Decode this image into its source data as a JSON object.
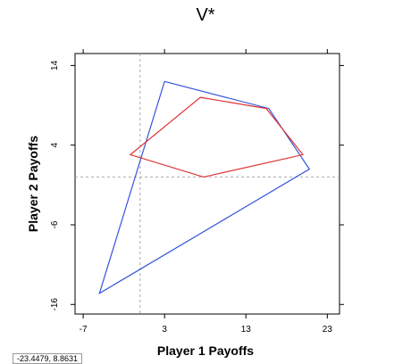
{
  "chart_data": {
    "type": "line",
    "title": "V*",
    "xlabel": "Player 1 Payoffs",
    "ylabel": "Player 2 Payoffs",
    "xlim": [
      -8,
      24.5
    ],
    "ylim": [
      -17.2,
      15.5
    ],
    "xticks": [
      -7,
      3,
      13,
      23
    ],
    "yticks": [
      -16,
      -6,
      4,
      14
    ],
    "reference_lines": {
      "x": 0.0,
      "y": 0.0
    },
    "series": [
      {
        "color": "#3355dd",
        "closed": true,
        "points": [
          [
            3.0,
            12.0
          ],
          [
            15.8,
            8.6
          ],
          [
            20.8,
            1.0
          ],
          [
            -5.0,
            -14.6
          ]
        ]
      },
      {
        "color": "#dd3333",
        "closed": true,
        "points": [
          [
            7.4,
            10.0
          ],
          [
            15.5,
            8.6
          ],
          [
            20.0,
            2.8
          ],
          [
            7.8,
            0.0
          ],
          [
            -1.2,
            2.8
          ]
        ]
      }
    ]
  },
  "status": {
    "coordinates": "-23.4479, 8.8631"
  }
}
